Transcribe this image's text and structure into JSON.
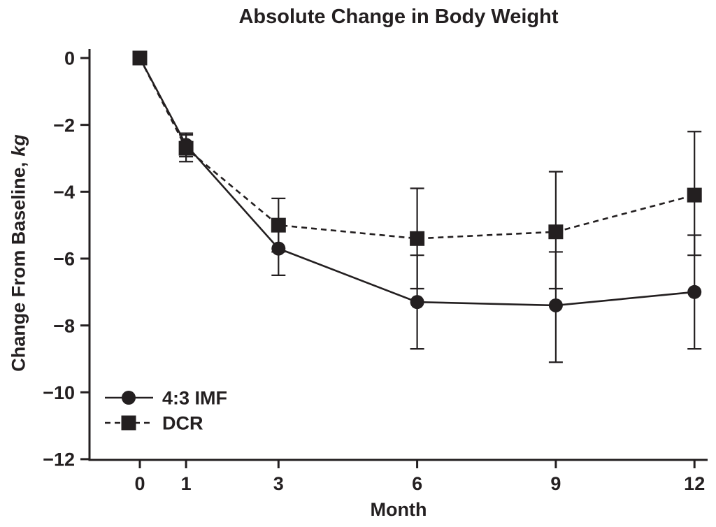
{
  "chart_data": {
    "type": "line",
    "title": "Absolute Change in Body Weight",
    "xlabel": "Month",
    "ylabel": "Change From Baseline, kg",
    "ylabel_main": "Change From Baseline,",
    "ylabel_unit": "kg",
    "x": [
      0,
      1,
      3,
      6,
      9,
      12
    ],
    "xticks": [
      0,
      1,
      3,
      6,
      9,
      12
    ],
    "yticks": [
      0,
      -2,
      -4,
      -6,
      -8,
      -10,
      -12
    ],
    "xlim": [
      -1.1,
      12.3
    ],
    "ylim": [
      -12,
      0.3
    ],
    "grid": false,
    "legend_position": "lower-left",
    "ink_color": "#231f20",
    "background_color": "#ffffff",
    "series": [
      {
        "name": "4:3 IMF",
        "marker": "circle",
        "line_style": "solid",
        "values": [
          0,
          -2.6,
          -5.7,
          -7.3,
          -7.4,
          -7.0
        ],
        "error_high": [
          null,
          -2.25,
          -4.9,
          -5.9,
          -5.8,
          -5.3
        ],
        "error_low": [
          null,
          -2.95,
          -6.5,
          -8.7,
          -9.1,
          -8.7
        ]
      },
      {
        "name": "DCR",
        "marker": "square",
        "line_style": "dashed",
        "values": [
          0,
          -2.7,
          -5.0,
          -5.4,
          -5.2,
          -4.1
        ],
        "error_high": [
          null,
          -2.3,
          -4.2,
          -3.9,
          -3.4,
          -2.2
        ],
        "error_low": [
          null,
          -3.1,
          -5.8,
          -6.9,
          -6.9,
          -5.9
        ]
      }
    ]
  }
}
